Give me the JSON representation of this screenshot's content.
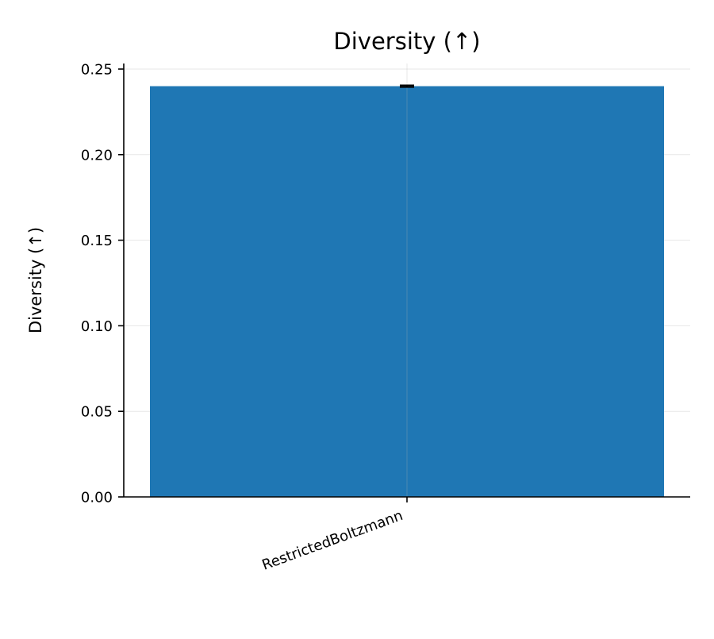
{
  "chart_data": {
    "type": "bar",
    "title": "Diversity (↑)",
    "xlabel": "",
    "ylabel": "Diversity (↑)",
    "categories": [
      "RestrictedBoltzmann"
    ],
    "series": [
      {
        "values": [
          0.24
        ],
        "error": [
          0.0005
        ]
      }
    ],
    "ylim": [
      0,
      0.25
    ],
    "yticks": [
      "0.00",
      "0.05",
      "0.10",
      "0.15",
      "0.20",
      "0.25"
    ],
    "grid": true,
    "legend": "none",
    "colors": {
      "bar": "#1f77b4",
      "error_bar": "#000000"
    }
  }
}
